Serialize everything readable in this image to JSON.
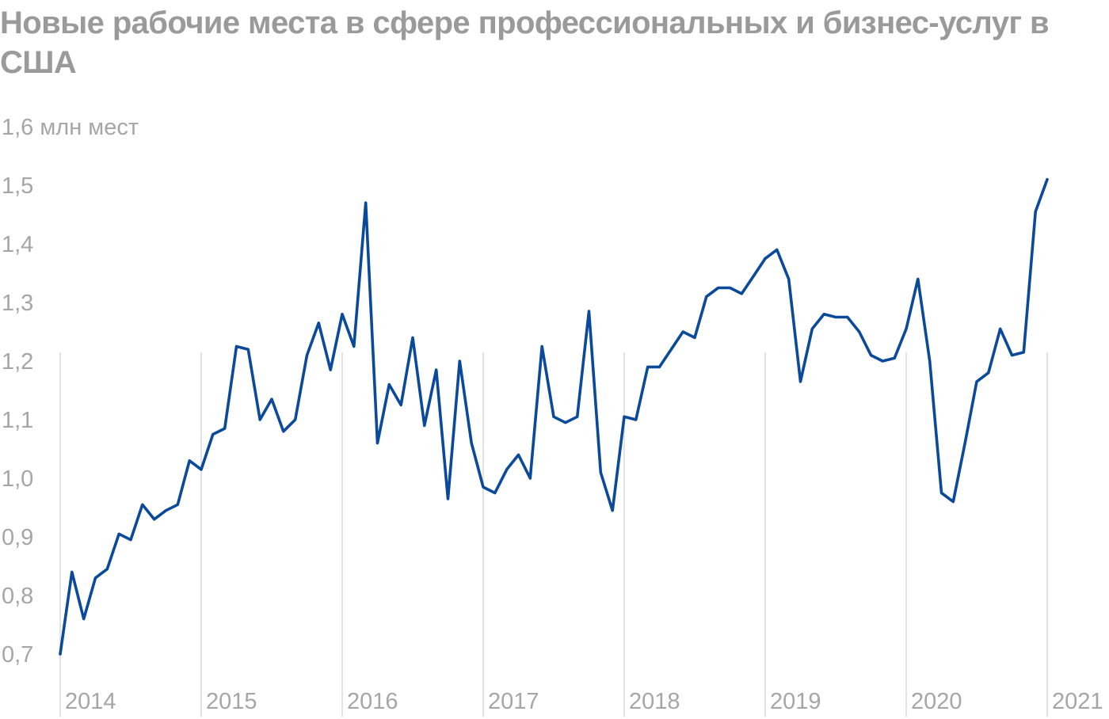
{
  "chart_data": {
    "type": "line",
    "title": "Новые рабочие места в сфере профессиональных и бизнес-услуг в США",
    "ylabel": "млн мест",
    "ylim": [
      0.7,
      1.6
    ],
    "yticks": [
      0.7,
      0.8,
      0.9,
      1.0,
      1.1,
      1.2,
      1.3,
      1.4,
      1.5,
      1.6
    ],
    "ytick_labels": [
      "0,7",
      "0,8",
      "0,9",
      "1,0",
      "1,1",
      "1,2",
      "1,3",
      "1,4",
      "1,5",
      "1,6 млн мест"
    ],
    "xlim": [
      2014.0,
      2021.0
    ],
    "xticks": [
      2014,
      2015,
      2016,
      2017,
      2018,
      2019,
      2020,
      2021
    ],
    "xtick_labels": [
      "2014",
      "2015",
      "2016",
      "2017",
      "2018",
      "2019",
      "2020",
      "2021"
    ],
    "grid": "vertical lines at year starts",
    "legend": "none",
    "series": [
      {
        "color": "#0b4a9a",
        "points": [
          [
            2014.0,
            0.7
          ],
          [
            2014.083,
            0.84
          ],
          [
            2014.167,
            0.76
          ],
          [
            2014.25,
            0.83
          ],
          [
            2014.333,
            0.845
          ],
          [
            2014.417,
            0.905
          ],
          [
            2014.5,
            0.895
          ],
          [
            2014.583,
            0.955
          ],
          [
            2014.667,
            0.93
          ],
          [
            2014.75,
            0.945
          ],
          [
            2014.833,
            0.955
          ],
          [
            2014.917,
            1.03
          ],
          [
            2015.0,
            1.015
          ],
          [
            2015.083,
            1.075
          ],
          [
            2015.167,
            1.085
          ],
          [
            2015.25,
            1.225
          ],
          [
            2015.333,
            1.22
          ],
          [
            2015.417,
            1.1
          ],
          [
            2015.5,
            1.135
          ],
          [
            2015.583,
            1.08
          ],
          [
            2015.667,
            1.1
          ],
          [
            2015.75,
            1.21
          ],
          [
            2015.833,
            1.265
          ],
          [
            2015.917,
            1.185
          ],
          [
            2016.0,
            1.28
          ],
          [
            2016.083,
            1.225
          ],
          [
            2016.167,
            1.47
          ],
          [
            2016.25,
            1.06
          ],
          [
            2016.333,
            1.16
          ],
          [
            2016.417,
            1.125
          ],
          [
            2016.5,
            1.24
          ],
          [
            2016.583,
            1.09
          ],
          [
            2016.667,
            1.185
          ],
          [
            2016.75,
            0.965
          ],
          [
            2016.833,
            1.2
          ],
          [
            2016.917,
            1.06
          ],
          [
            2017.0,
            0.985
          ],
          [
            2017.083,
            0.975
          ],
          [
            2017.167,
            1.015
          ],
          [
            2017.25,
            1.04
          ],
          [
            2017.333,
            1.0
          ],
          [
            2017.417,
            1.225
          ],
          [
            2017.5,
            1.105
          ],
          [
            2017.583,
            1.095
          ],
          [
            2017.667,
            1.105
          ],
          [
            2017.75,
            1.285
          ],
          [
            2017.833,
            1.01
          ],
          [
            2017.917,
            0.945
          ],
          [
            2018.0,
            1.105
          ],
          [
            2018.083,
            1.1
          ],
          [
            2018.167,
            1.19
          ],
          [
            2018.25,
            1.19
          ],
          [
            2018.333,
            1.22
          ],
          [
            2018.417,
            1.25
          ],
          [
            2018.5,
            1.24
          ],
          [
            2018.583,
            1.31
          ],
          [
            2018.667,
            1.325
          ],
          [
            2018.75,
            1.325
          ],
          [
            2018.833,
            1.315
          ],
          [
            2018.917,
            1.345
          ],
          [
            2019.0,
            1.375
          ],
          [
            2019.083,
            1.39
          ],
          [
            2019.167,
            1.34
          ],
          [
            2019.25,
            1.165
          ],
          [
            2019.333,
            1.255
          ],
          [
            2019.417,
            1.28
          ],
          [
            2019.5,
            1.275
          ],
          [
            2019.583,
            1.275
          ],
          [
            2019.667,
            1.25
          ],
          [
            2019.75,
            1.21
          ],
          [
            2019.833,
            1.2
          ],
          [
            2019.917,
            1.205
          ],
          [
            2020.0,
            1.255
          ],
          [
            2020.083,
            1.34
          ],
          [
            2020.167,
            1.2
          ],
          [
            2020.25,
            0.975
          ],
          [
            2020.333,
            0.96
          ],
          [
            2020.417,
            1.06
          ],
          [
            2020.5,
            1.165
          ],
          [
            2020.583,
            1.18
          ],
          [
            2020.667,
            1.255
          ],
          [
            2020.75,
            1.21
          ],
          [
            2020.833,
            1.215
          ],
          [
            2020.917,
            1.455
          ],
          [
            2021.0,
            1.51
          ]
        ]
      }
    ]
  }
}
